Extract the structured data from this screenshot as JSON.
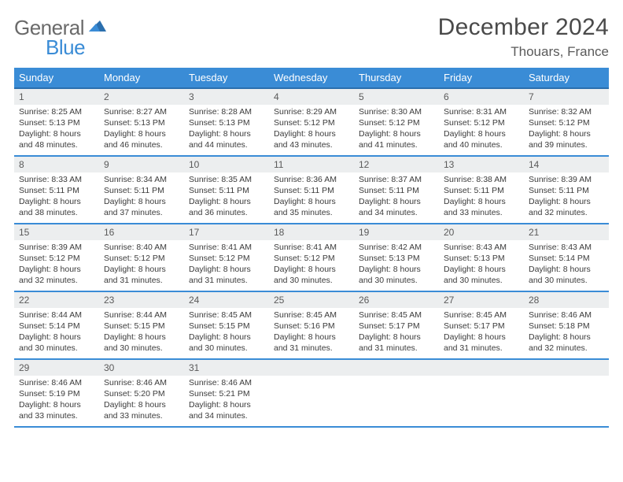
{
  "logo": {
    "part1": "General",
    "part2": "Blue"
  },
  "title": "December 2024",
  "location": "Thouars, France",
  "colors": {
    "header_bg": "#3a8cd6",
    "header_border": "#2b6fae",
    "row_border": "#3a8cd6",
    "daynum_bg": "#eceeef",
    "text": "#333333",
    "title_text": "#4a4a4a"
  },
  "days_of_week": [
    "Sunday",
    "Monday",
    "Tuesday",
    "Wednesday",
    "Thursday",
    "Friday",
    "Saturday"
  ],
  "weeks": [
    [
      {
        "n": "1",
        "sr": "Sunrise: 8:25 AM",
        "ss": "Sunset: 5:13 PM",
        "dl1": "Daylight: 8 hours",
        "dl2": "and 48 minutes."
      },
      {
        "n": "2",
        "sr": "Sunrise: 8:27 AM",
        "ss": "Sunset: 5:13 PM",
        "dl1": "Daylight: 8 hours",
        "dl2": "and 46 minutes."
      },
      {
        "n": "3",
        "sr": "Sunrise: 8:28 AM",
        "ss": "Sunset: 5:13 PM",
        "dl1": "Daylight: 8 hours",
        "dl2": "and 44 minutes."
      },
      {
        "n": "4",
        "sr": "Sunrise: 8:29 AM",
        "ss": "Sunset: 5:12 PM",
        "dl1": "Daylight: 8 hours",
        "dl2": "and 43 minutes."
      },
      {
        "n": "5",
        "sr": "Sunrise: 8:30 AM",
        "ss": "Sunset: 5:12 PM",
        "dl1": "Daylight: 8 hours",
        "dl2": "and 41 minutes."
      },
      {
        "n": "6",
        "sr": "Sunrise: 8:31 AM",
        "ss": "Sunset: 5:12 PM",
        "dl1": "Daylight: 8 hours",
        "dl2": "and 40 minutes."
      },
      {
        "n": "7",
        "sr": "Sunrise: 8:32 AM",
        "ss": "Sunset: 5:12 PM",
        "dl1": "Daylight: 8 hours",
        "dl2": "and 39 minutes."
      }
    ],
    [
      {
        "n": "8",
        "sr": "Sunrise: 8:33 AM",
        "ss": "Sunset: 5:11 PM",
        "dl1": "Daylight: 8 hours",
        "dl2": "and 38 minutes."
      },
      {
        "n": "9",
        "sr": "Sunrise: 8:34 AM",
        "ss": "Sunset: 5:11 PM",
        "dl1": "Daylight: 8 hours",
        "dl2": "and 37 minutes."
      },
      {
        "n": "10",
        "sr": "Sunrise: 8:35 AM",
        "ss": "Sunset: 5:11 PM",
        "dl1": "Daylight: 8 hours",
        "dl2": "and 36 minutes."
      },
      {
        "n": "11",
        "sr": "Sunrise: 8:36 AM",
        "ss": "Sunset: 5:11 PM",
        "dl1": "Daylight: 8 hours",
        "dl2": "and 35 minutes."
      },
      {
        "n": "12",
        "sr": "Sunrise: 8:37 AM",
        "ss": "Sunset: 5:11 PM",
        "dl1": "Daylight: 8 hours",
        "dl2": "and 34 minutes."
      },
      {
        "n": "13",
        "sr": "Sunrise: 8:38 AM",
        "ss": "Sunset: 5:11 PM",
        "dl1": "Daylight: 8 hours",
        "dl2": "and 33 minutes."
      },
      {
        "n": "14",
        "sr": "Sunrise: 8:39 AM",
        "ss": "Sunset: 5:11 PM",
        "dl1": "Daylight: 8 hours",
        "dl2": "and 32 minutes."
      }
    ],
    [
      {
        "n": "15",
        "sr": "Sunrise: 8:39 AM",
        "ss": "Sunset: 5:12 PM",
        "dl1": "Daylight: 8 hours",
        "dl2": "and 32 minutes."
      },
      {
        "n": "16",
        "sr": "Sunrise: 8:40 AM",
        "ss": "Sunset: 5:12 PM",
        "dl1": "Daylight: 8 hours",
        "dl2": "and 31 minutes."
      },
      {
        "n": "17",
        "sr": "Sunrise: 8:41 AM",
        "ss": "Sunset: 5:12 PM",
        "dl1": "Daylight: 8 hours",
        "dl2": "and 31 minutes."
      },
      {
        "n": "18",
        "sr": "Sunrise: 8:41 AM",
        "ss": "Sunset: 5:12 PM",
        "dl1": "Daylight: 8 hours",
        "dl2": "and 30 minutes."
      },
      {
        "n": "19",
        "sr": "Sunrise: 8:42 AM",
        "ss": "Sunset: 5:13 PM",
        "dl1": "Daylight: 8 hours",
        "dl2": "and 30 minutes."
      },
      {
        "n": "20",
        "sr": "Sunrise: 8:43 AM",
        "ss": "Sunset: 5:13 PM",
        "dl1": "Daylight: 8 hours",
        "dl2": "and 30 minutes."
      },
      {
        "n": "21",
        "sr": "Sunrise: 8:43 AM",
        "ss": "Sunset: 5:14 PM",
        "dl1": "Daylight: 8 hours",
        "dl2": "and 30 minutes."
      }
    ],
    [
      {
        "n": "22",
        "sr": "Sunrise: 8:44 AM",
        "ss": "Sunset: 5:14 PM",
        "dl1": "Daylight: 8 hours",
        "dl2": "and 30 minutes."
      },
      {
        "n": "23",
        "sr": "Sunrise: 8:44 AM",
        "ss": "Sunset: 5:15 PM",
        "dl1": "Daylight: 8 hours",
        "dl2": "and 30 minutes."
      },
      {
        "n": "24",
        "sr": "Sunrise: 8:45 AM",
        "ss": "Sunset: 5:15 PM",
        "dl1": "Daylight: 8 hours",
        "dl2": "and 30 minutes."
      },
      {
        "n": "25",
        "sr": "Sunrise: 8:45 AM",
        "ss": "Sunset: 5:16 PM",
        "dl1": "Daylight: 8 hours",
        "dl2": "and 31 minutes."
      },
      {
        "n": "26",
        "sr": "Sunrise: 8:45 AM",
        "ss": "Sunset: 5:17 PM",
        "dl1": "Daylight: 8 hours",
        "dl2": "and 31 minutes."
      },
      {
        "n": "27",
        "sr": "Sunrise: 8:45 AM",
        "ss": "Sunset: 5:17 PM",
        "dl1": "Daylight: 8 hours",
        "dl2": "and 31 minutes."
      },
      {
        "n": "28",
        "sr": "Sunrise: 8:46 AM",
        "ss": "Sunset: 5:18 PM",
        "dl1": "Daylight: 8 hours",
        "dl2": "and 32 minutes."
      }
    ],
    [
      {
        "n": "29",
        "sr": "Sunrise: 8:46 AM",
        "ss": "Sunset: 5:19 PM",
        "dl1": "Daylight: 8 hours",
        "dl2": "and 33 minutes."
      },
      {
        "n": "30",
        "sr": "Sunrise: 8:46 AM",
        "ss": "Sunset: 5:20 PM",
        "dl1": "Daylight: 8 hours",
        "dl2": "and 33 minutes."
      },
      {
        "n": "31",
        "sr": "Sunrise: 8:46 AM",
        "ss": "Sunset: 5:21 PM",
        "dl1": "Daylight: 8 hours",
        "dl2": "and 34 minutes."
      },
      {
        "empty": true
      },
      {
        "empty": true
      },
      {
        "empty": true
      },
      {
        "empty": true
      }
    ]
  ]
}
